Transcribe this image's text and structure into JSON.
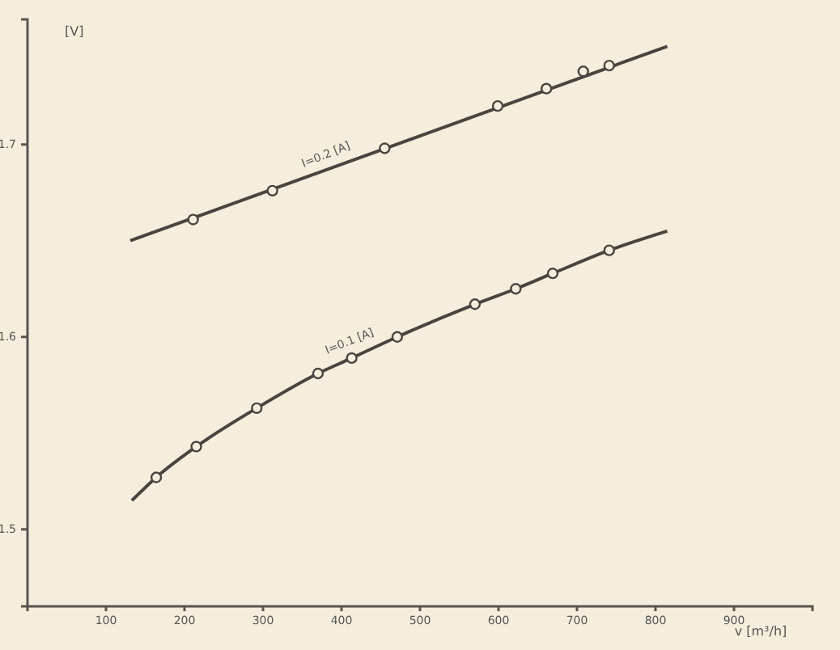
{
  "chart_data": {
    "type": "line",
    "ylabel": "[V]",
    "xlabel": "v [m³/h]",
    "xlim": [
      0,
      1000
    ],
    "xticks": [
      100,
      200,
      300,
      400,
      500,
      600,
      700,
      800,
      900
    ],
    "ylim": [
      1.46,
      1.765
    ],
    "yticks": [
      1.5,
      1.6,
      1.7
    ],
    "grid": false,
    "series": [
      {
        "color": "#4a4440",
        "marker": "none",
        "x": [
          131,
          815
        ],
        "values": [
          1.65,
          1.751
        ]
      },
      {
        "type": "scatter",
        "color": "#4a4440",
        "marker": "circle",
        "x": [
          211,
          312,
          455,
          599,
          661,
          708,
          741
        ],
        "values": [
          1.661,
          1.676,
          1.698,
          1.72,
          1.729,
          1.738,
          1.741
        ]
      },
      {
        "color": "#4a4440",
        "marker": "none",
        "x": [
          133,
          164,
          215,
          292,
          370,
          413,
          471,
          570,
          622,
          669,
          741,
          815
        ],
        "values": [
          1.515,
          1.527,
          1.543,
          1.563,
          1.581,
          1.589,
          1.6,
          1.617,
          1.625,
          1.633,
          1.645,
          1.655
        ]
      },
      {
        "type": "scatter",
        "color": "#4a4440",
        "marker": "circle",
        "x": [
          164,
          215,
          292,
          370,
          413,
          471,
          570,
          622,
          669,
          741
        ],
        "values": [
          1.527,
          1.543,
          1.563,
          1.581,
          1.589,
          1.6,
          1.617,
          1.625,
          1.633,
          1.645
        ]
      }
    ],
    "annotations": [
      {
        "text": "I=0.2 [A]",
        "x": 390,
        "y": 1.688
      },
      {
        "text": "I=0.1 [A]",
        "x": 420,
        "y": 1.591
      }
    ]
  }
}
